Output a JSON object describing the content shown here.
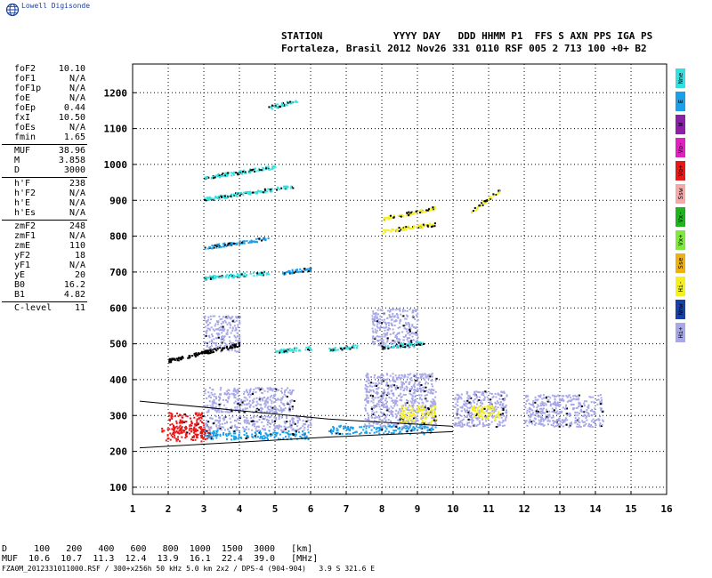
{
  "logo": {
    "text": "Lowell Digisonde",
    "icon": "globe-icon"
  },
  "header": {
    "line1": "STATION            YYYY DAY   DDD HHMM P1  FFS S AXN PPS IGA PS",
    "line2": "Fortaleza, Brasil 2012 Nov26 331 0110 RSF 005 2 713 100 +0+ B2"
  },
  "params": {
    "group1": [
      {
        "label": "foF2",
        "value": "10.10"
      },
      {
        "label": "foF1",
        "value": "N/A"
      },
      {
        "label": "foF1p",
        "value": "N/A"
      },
      {
        "label": "foE",
        "value": "N/A"
      },
      {
        "label": "foEp",
        "value": "0.44"
      },
      {
        "label": "fxI",
        "value": "10.50"
      },
      {
        "label": "foEs",
        "value": "N/A"
      },
      {
        "label": "fmin",
        "value": "1.65"
      }
    ],
    "group2": [
      {
        "label": "MUF",
        "value": "38.96"
      },
      {
        "label": "M",
        "value": "3.858"
      },
      {
        "label": "D",
        "value": "3000"
      }
    ],
    "group3": [
      {
        "label": "h'F",
        "value": "238"
      },
      {
        "label": "h'F2",
        "value": "N/A"
      },
      {
        "label": "h'E",
        "value": "N/A"
      },
      {
        "label": "h'Es",
        "value": "N/A"
      }
    ],
    "group4": [
      {
        "label": "zmF2",
        "value": "248"
      },
      {
        "label": "zmF1",
        "value": "N/A"
      },
      {
        "label": "zmE",
        "value": "110"
      },
      {
        "label": "yF2",
        "value": "18"
      },
      {
        "label": "yF1",
        "value": "N/A"
      },
      {
        "label": "yE",
        "value": "20"
      },
      {
        "label": "B0",
        "value": "16.2"
      },
      {
        "label": "B1",
        "value": "4.82"
      }
    ],
    "group5": [
      {
        "label": "C-level",
        "value": "11"
      }
    ]
  },
  "legend": [
    {
      "label": "Nne",
      "color": "#33e0e0"
    },
    {
      "label": "E",
      "color": "#1aa0ea"
    },
    {
      "label": "W",
      "color": "#8b1fa8"
    },
    {
      "label": "Vo-",
      "color": "#e020c0"
    },
    {
      "label": "Vo+",
      "color": "#e81818"
    },
    {
      "label": "Ssw",
      "color": "#f4a8a8"
    },
    {
      "label": "Vx-",
      "color": "#1eb41e"
    },
    {
      "label": "Vx+",
      "color": "#7fe83c"
    },
    {
      "label": "Sse",
      "color": "#f0b010"
    },
    {
      "label": "Hi-",
      "color": "#f4f020"
    },
    {
      "label": "Nnw",
      "color": "#1840a8"
    },
    {
      "label": "Hi+",
      "color": "#a8a8e8"
    }
  ],
  "chart_data": {
    "type": "scatter",
    "title": "",
    "xlabel": "",
    "ylabel": "",
    "xlim": [
      1,
      16
    ],
    "ylim": [
      80,
      1280
    ],
    "xticks": [
      "1",
      "2",
      "3",
      "4",
      "5",
      "6",
      "7",
      "8",
      "9",
      "10",
      "11",
      "12",
      "13",
      "14",
      "15",
      "16"
    ],
    "yticks": [
      "100",
      "200",
      "300",
      "400",
      "500",
      "600",
      "700",
      "800",
      "900",
      "1000",
      "1100",
      "1200"
    ],
    "grid": true,
    "echo_regions": [
      {
        "x": [
          1.8,
          3.2
        ],
        "y": [
          230,
          270
        ],
        "color": "#e81818"
      },
      {
        "x": [
          2.0,
          3.0
        ],
        "y": [
          250,
          310
        ],
        "color": "#e81818"
      },
      {
        "x": [
          3.0,
          6.0
        ],
        "y": [
          235,
          260
        ],
        "color": "#1aa0ea"
      },
      {
        "x": [
          3.0,
          6.0
        ],
        "y": [
          260,
          300
        ],
        "color": "#a8a8e8"
      },
      {
        "x": [
          3.0,
          5.5
        ],
        "y": [
          310,
          380
        ],
        "color": "#a8a8e8"
      },
      {
        "x": [
          6.5,
          9.5
        ],
        "y": [
          250,
          275
        ],
        "color": "#1aa0ea"
      },
      {
        "x": [
          7.5,
          9.5
        ],
        "y": [
          270,
          420
        ],
        "color": "#a8a8e8"
      },
      {
        "x": [
          8.5,
          9.5
        ],
        "y": [
          280,
          330
        ],
        "color": "#f4f020"
      },
      {
        "x": [
          10.0,
          11.5
        ],
        "y": [
          270,
          370
        ],
        "color": "#a8a8e8"
      },
      {
        "x": [
          10.5,
          11.3
        ],
        "y": [
          290,
          330
        ],
        "color": "#f4f020"
      },
      {
        "x": [
          12.0,
          14.2
        ],
        "y": [
          270,
          360
        ],
        "color": "#a8a8e8"
      },
      {
        "x": [
          3.0,
          4.0
        ],
        "y": [
          480,
          580
        ],
        "color": "#a8a8e8"
      },
      {
        "x": [
          7.7,
          9.0
        ],
        "y": [
          490,
          600
        ],
        "color": "#a8a8e8"
      }
    ],
    "echo_traces": [
      {
        "x": [
          3.0,
          4.8
        ],
        "y": [
          685,
          700
        ],
        "color": "#33e0e0"
      },
      {
        "x": [
          3.0,
          4.8
        ],
        "y": [
          770,
          795
        ],
        "color": "#1aa0ea"
      },
      {
        "x": [
          3.0,
          5.5
        ],
        "y": [
          905,
          940
        ],
        "color": "#33e0e0"
      },
      {
        "x": [
          3.0,
          5.0
        ],
        "y": [
          965,
          995
        ],
        "color": "#33e0e0"
      },
      {
        "x": [
          5.0,
          6.0
        ],
        "y": [
          480,
          490
        ],
        "color": "#33e0e0"
      },
      {
        "x": [
          5.2,
          6.0
        ],
        "y": [
          700,
          710
        ],
        "color": "#1aa0ea"
      },
      {
        "x": [
          6.5,
          7.3
        ],
        "y": [
          485,
          495
        ],
        "color": "#33e0e0"
      },
      {
        "x": [
          8.0,
          9.2
        ],
        "y": [
          490,
          505
        ],
        "color": "#33e0e0"
      },
      {
        "x": [
          8.0,
          9.5
        ],
        "y": [
          815,
          835
        ],
        "color": "#f4f020"
      },
      {
        "x": [
          8.0,
          9.5
        ],
        "y": [
          850,
          880
        ],
        "color": "#f4f020"
      },
      {
        "x": [
          10.5,
          11.3
        ],
        "y": [
          870,
          930
        ],
        "color": "#f4f020"
      },
      {
        "x": [
          2.0,
          4.0
        ],
        "y": [
          455,
          500
        ],
        "color": "#000000"
      },
      {
        "x": [
          4.8,
          5.6
        ],
        "y": [
          1160,
          1180
        ],
        "color": "#33e0e0"
      }
    ],
    "profile_lines": [
      {
        "x": [
          1.2,
          6.5,
          10.0
        ],
        "y": [
          340,
          290,
          270
        ]
      },
      {
        "x": [
          1.2,
          6.5,
          10.0
        ],
        "y": [
          210,
          240,
          255
        ]
      }
    ]
  },
  "footer": {
    "row_d": "D     100   200   400   600   800  1000  1500  3000   [km]",
    "row_muf": "MUF  10.6  10.7  11.3  12.4  13.9  16.1  22.4  39.0   [MHz]",
    "file_line": "FZA0M_2012331011000.RSF / 300+x256h 50 kHz 5.0 km 2x2 / DPS-4 (904-904)   3.9 S 321.6 E"
  }
}
